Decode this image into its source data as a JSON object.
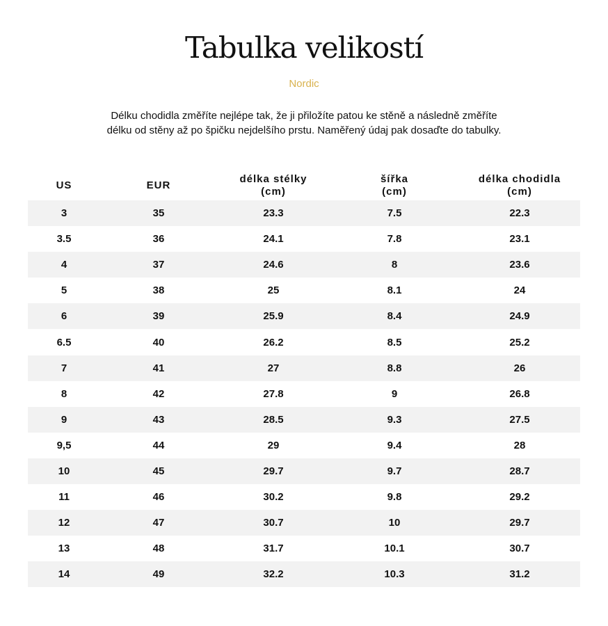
{
  "title": "Tabulka velikostí",
  "brand": "Nordic",
  "description": [
    "Délku chodidla změříte nejlépe tak, že ji přiložíte patou ke stěně a následně změříte",
    "délku od stěny až po špičku nejdelšího prstu. Naměřený údaj pak dosaďte do tabulky."
  ],
  "colors": {
    "brand": "#d9b24e",
    "row_stripe": "#f2f2f2"
  },
  "table": {
    "headers": [
      [
        "US"
      ],
      [
        "EUR"
      ],
      [
        "délka stélky",
        "(cm)"
      ],
      [
        "šířka",
        "(cm)"
      ],
      [
        "délka chodidla",
        "(cm)"
      ]
    ],
    "rows": [
      [
        "3",
        "35",
        "23.3",
        "7.5",
        "22.3"
      ],
      [
        "3.5",
        "36",
        "24.1",
        "7.8",
        "23.1"
      ],
      [
        "4",
        "37",
        "24.6",
        "8",
        "23.6"
      ],
      [
        "5",
        "38",
        "25",
        "8.1",
        "24"
      ],
      [
        "6",
        "39",
        "25.9",
        "8.4",
        "24.9"
      ],
      [
        "6.5",
        "40",
        "26.2",
        "8.5",
        "25.2"
      ],
      [
        "7",
        "41",
        "27",
        "8.8",
        "26"
      ],
      [
        "8",
        "42",
        "27.8",
        "9",
        "26.8"
      ],
      [
        "9",
        "43",
        "28.5",
        "9.3",
        "27.5"
      ],
      [
        "9,5",
        "44",
        "29",
        "9.4",
        "28"
      ],
      [
        "10",
        "45",
        "29.7",
        "9.7",
        "28.7"
      ],
      [
        "11",
        "46",
        "30.2",
        "9.8",
        "29.2"
      ],
      [
        "12",
        "47",
        "30.7",
        "10",
        "29.7"
      ],
      [
        "13",
        "48",
        "31.7",
        "10.1",
        "30.7"
      ],
      [
        "14",
        "49",
        "32.2",
        "10.3",
        "31.2"
      ]
    ]
  }
}
